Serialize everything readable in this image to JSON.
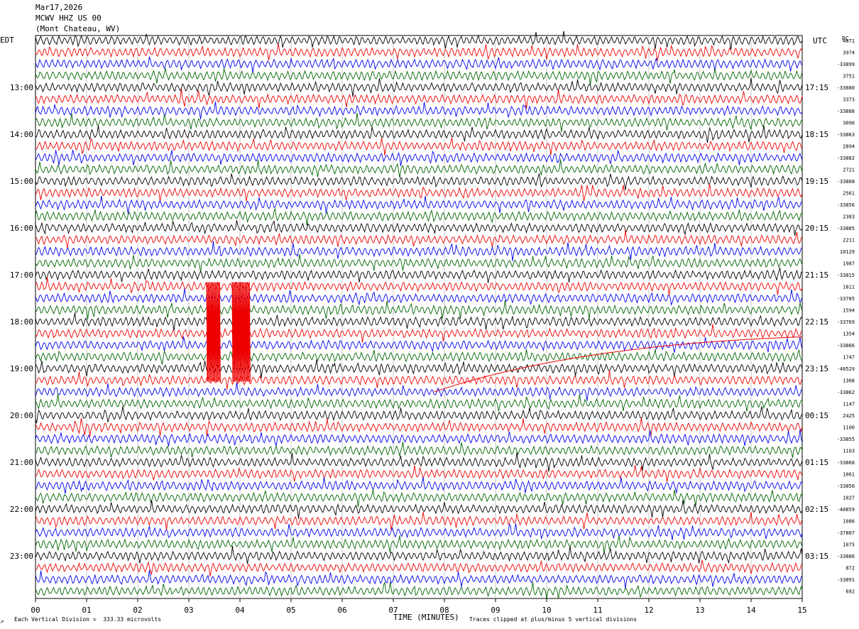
{
  "header": {
    "date": "Mar17,2026",
    "station": "MCWV HHZ US 00",
    "location": "(Mont Chateau, WV)"
  },
  "left_zone": "EDT",
  "right_zone": "UTC",
  "right_corner": "RC",
  "footer": {
    "scale_note": "Each Vertical Division =  333.33 microvolts",
    "clip_note": "Traces clipped at plus/minus 5 vertical divisions",
    "logo_mark": "↗"
  },
  "chart_data": {
    "type": "helicorder",
    "xlabel": "TIME (MINUTES)",
    "x_ticks": [
      "00",
      "01",
      "02",
      "03",
      "04",
      "05",
      "06",
      "07",
      "08",
      "09",
      "10",
      "11",
      "12",
      "13",
      "14",
      "15"
    ],
    "xlim": [
      0,
      15
    ],
    "rows": 48,
    "row_minutes": 15,
    "trace_colors": [
      "#000000",
      "#ee0000",
      "#0000ee",
      "#006400"
    ],
    "left_hour_labels": [
      {
        "row": 4,
        "label": "13:00"
      },
      {
        "row": 8,
        "label": "14:00"
      },
      {
        "row": 12,
        "label": "15:00"
      },
      {
        "row": 16,
        "label": "16:00"
      },
      {
        "row": 20,
        "label": "17:00"
      },
      {
        "row": 24,
        "label": "18:00"
      },
      {
        "row": 28,
        "label": "19:00"
      },
      {
        "row": 32,
        "label": "20:00"
      },
      {
        "row": 36,
        "label": "21:00"
      },
      {
        "row": 40,
        "label": "22:00"
      },
      {
        "row": 44,
        "label": "23:00"
      }
    ],
    "right_hour_labels": [
      {
        "row": 4,
        "label": "17:15"
      },
      {
        "row": 8,
        "label": "18:15"
      },
      {
        "row": 12,
        "label": "19:15"
      },
      {
        "row": 16,
        "label": "20:15"
      },
      {
        "row": 20,
        "label": "21:15"
      },
      {
        "row": 24,
        "label": "22:15"
      },
      {
        "row": 28,
        "label": "23:15"
      },
      {
        "row": 32,
        "label": "00:15"
      },
      {
        "row": 36,
        "label": "01:15"
      },
      {
        "row": 40,
        "label": "02:15"
      },
      {
        "row": 44,
        "label": "03:15"
      }
    ],
    "row_offsets": [
      "4071",
      "3974",
      "-33899",
      "3751",
      "-33880",
      "3373",
      "-33888",
      "3090",
      "-33863",
      "2894",
      "-33882",
      "2721",
      "-33808",
      "2561",
      "-33856",
      "2383",
      "-33885",
      "2211",
      "10129",
      "1987",
      "-33815",
      "1811",
      "-33785",
      "1594",
      "-33769",
      "1354",
      "-33866",
      "1747",
      "-40529",
      "1368",
      "-33862",
      "1147",
      "2425",
      "1100",
      "-33855",
      "1103",
      "-33868",
      "1061",
      "-33850",
      "1027",
      "-40859",
      "1086",
      "-37807",
      "1075",
      "-33886",
      "872",
      "-33891",
      "692"
    ],
    "clipped_event": {
      "rows": [
        21,
        29
      ],
      "minute_ranges": [
        [
          3.35,
          3.6
        ],
        [
          3.85,
          4.2
        ]
      ],
      "color": "#ee0000"
    }
  }
}
